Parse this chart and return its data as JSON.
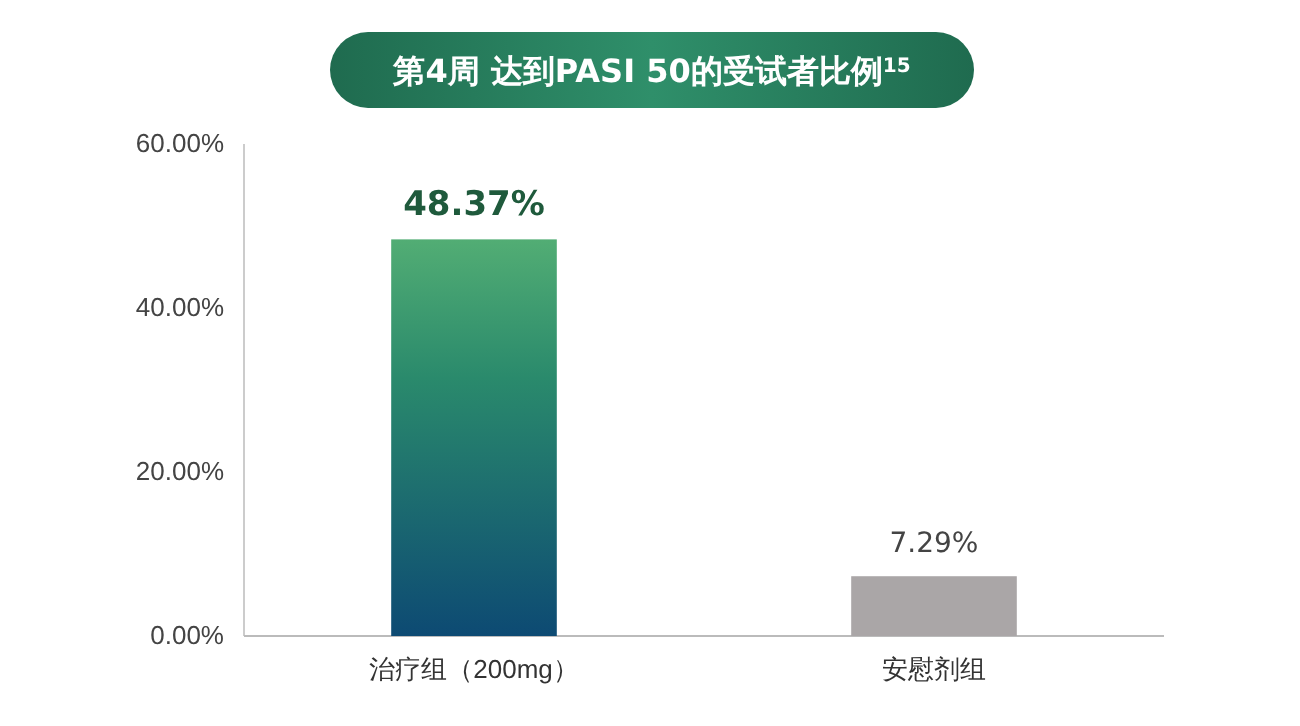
{
  "chart_data": {
    "type": "bar",
    "title": "第4周 达到PASI 50的受试者比例$^{15}$",
    "categories": [
      "治疗组（200mg）",
      "安慰剂组"
    ],
    "values": [
      48.37,
      7.29
    ],
    "colors": [
      "#2a8a6c",
      "#aaa6a7"
    ],
    "value_labels": [
      "48.37%",
      "7.29%"
    ],
    "ylim": [
      0,
      60
    ],
    "yticks": [
      {
        "value": 0,
        "label": "0.00%"
      },
      {
        "value": 20,
        "label": "20.00%"
      },
      {
        "value": 40,
        "label": "40.00%"
      },
      {
        "value": 60,
        "label": "60.00%"
      }
    ],
    "grid": false
  }
}
